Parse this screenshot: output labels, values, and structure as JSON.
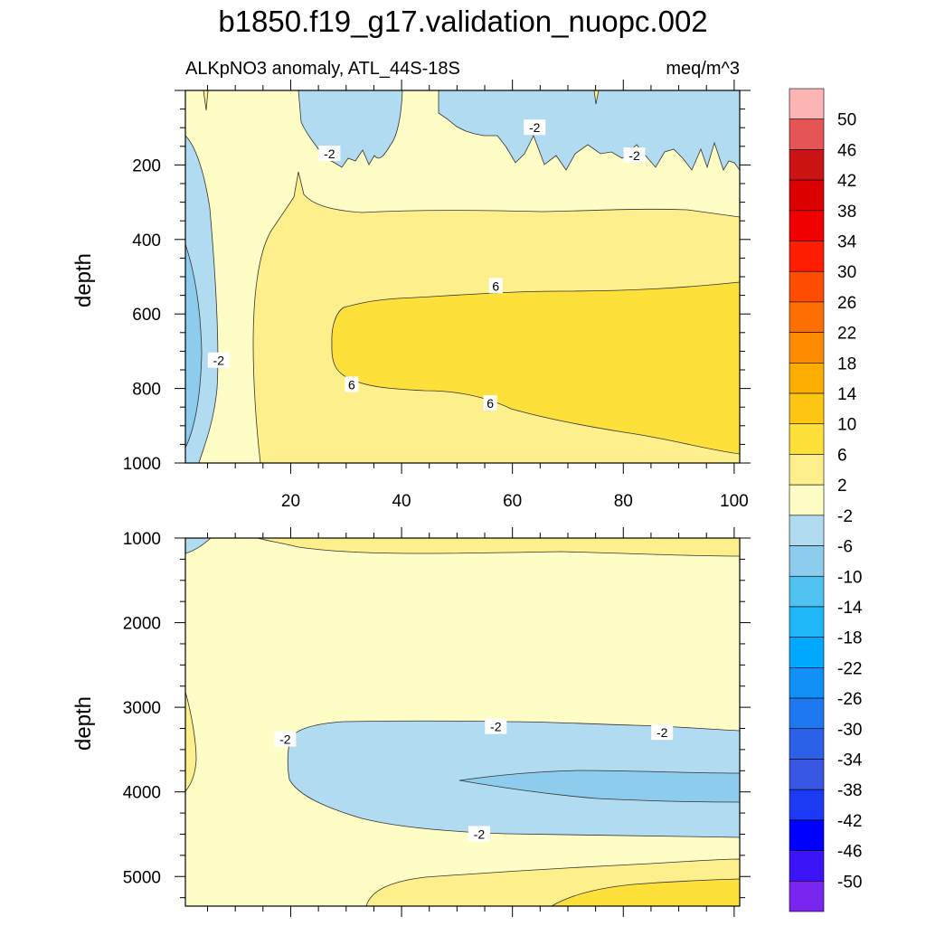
{
  "figure": {
    "title": "b1850.f19_g17.validation_nuopc.002",
    "subtitle_left": "ALKpNO3 anomaly, ATL_44S-18S",
    "subtitle_right": "meq/m^3"
  },
  "colors": {
    "background": "#ffffff",
    "axis": "#000000",
    "contour_line": "#333333"
  },
  "chart_data": [
    {
      "type": "heatmap",
      "panel": "upper",
      "xlabel": "",
      "ylabel": "depth",
      "xlim": [
        1,
        101
      ],
      "ylim": [
        1000,
        0
      ],
      "x_ticks": [
        20,
        40,
        60,
        80,
        100
      ],
      "y_ticks": [
        200,
        400,
        600,
        800,
        1000
      ],
      "contour_labels": [
        {
          "text": "-2",
          "x": 27,
          "y": 170
        },
        {
          "text": "-2",
          "x": 64,
          "y": 100
        },
        {
          "text": "-2",
          "x": 82,
          "y": 175
        },
        {
          "text": "6",
          "x": 57,
          "y": 525
        },
        {
          "text": "-2",
          "x": 7,
          "y": 725
        },
        {
          "text": "6",
          "x": 31,
          "y": 790
        },
        {
          "text": "6",
          "x": 56,
          "y": 840
        }
      ],
      "regions": [
        {
          "level": "-2 to 2",
          "description": "surface band and western column"
        },
        {
          "level": "-6 to -2",
          "description": "near-surface patches x 22-38 and x 47-101; western edge 400-1000"
        },
        {
          "level": "2 to 6",
          "description": "main body x 15-101, depth 300-1000"
        },
        {
          "level": "6 to 10",
          "description": "core x 28-101, depth 550-990"
        }
      ]
    },
    {
      "type": "heatmap",
      "panel": "lower",
      "xlabel": "",
      "ylabel": "depth",
      "xlim": [
        1,
        101
      ],
      "ylim": [
        5350,
        1000
      ],
      "x_ticks": [
        20,
        40,
        60,
        80,
        100
      ],
      "y_ticks": [
        1000,
        2000,
        3000,
        4000,
        5000
      ],
      "contour_labels": [
        {
          "text": "-2",
          "x": 19,
          "y": 3380
        },
        {
          "text": "-2",
          "x": 57,
          "y": 3230
        },
        {
          "text": "-2",
          "x": 87,
          "y": 3300
        },
        {
          "text": "-2",
          "x": 54,
          "y": 4500
        }
      ],
      "regions": [
        {
          "level": "-2 to 2",
          "description": "background"
        },
        {
          "level": "2 to 6",
          "description": "band near 1000-1300 and bottom wedge 4700-5350; western sliver 2800-4000"
        },
        {
          "level": "-6 to -2",
          "description": "tongue x 19-101, depth 3200-4550; corner at x 1-5 near 1000"
        },
        {
          "level": "-10 to -6",
          "description": "core x 51-101, depth 3750-4200"
        },
        {
          "level": "6 to 10",
          "description": "bottom-right x 70-101 below 5000"
        }
      ]
    }
  ],
  "colorbar": {
    "labels": [
      "50",
      "46",
      "42",
      "38",
      "34",
      "30",
      "26",
      "22",
      "18",
      "14",
      "10",
      "6",
      "2",
      "-2",
      "-6",
      "-10",
      "-14",
      "-18",
      "-22",
      "-26",
      "-30",
      "-34",
      "-38",
      "-42",
      "-46",
      "-50"
    ],
    "colors": [
      "#fdb4b4",
      "#e55555",
      "#cc1414",
      "#dc0000",
      "#f00000",
      "#ff1e00",
      "#fe4d00",
      "#ff6f00",
      "#ff8c00",
      "#fdac00",
      "#fdc612",
      "#fde03a",
      "#fdf08c",
      "#fefdc6",
      "#b1dbf0",
      "#8dccec",
      "#4fc2f2",
      "#1fb7f7",
      "#00a8ff",
      "#1190f8",
      "#1e78f0",
      "#2b61e8",
      "#3757e2",
      "#1c3af3",
      "#0000ff",
      "#3c14f7",
      "#7a24ef"
    ]
  }
}
